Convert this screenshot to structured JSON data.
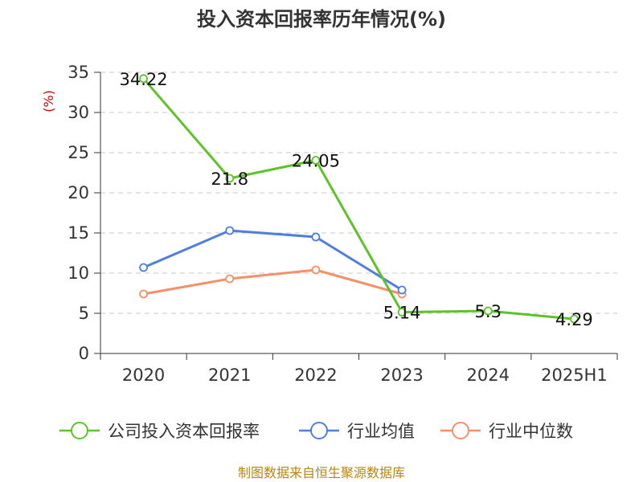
{
  "chart_data": {
    "type": "line",
    "title": "投入资本回报率历年情况(%)",
    "unit_label": "(%)",
    "categories": [
      "2020",
      "2021",
      "2022",
      "2023",
      "2024",
      "2025H1"
    ],
    "ylim": [
      0,
      35
    ],
    "yticks": [
      0,
      5,
      10,
      15,
      20,
      25,
      30,
      35
    ],
    "grid": true,
    "legend_position": "bottom",
    "series": [
      {
        "name": "公司投入资本回报率",
        "color": "#5ec229",
        "values": [
          34.22,
          21.8,
          24.05,
          5.14,
          5.3,
          4.29
        ],
        "labels": [
          "34.22",
          "21.8",
          "24.05",
          "5.14",
          "5.3",
          "4.29"
        ]
      },
      {
        "name": "行业均值",
        "color": "#4f7fdb",
        "values": [
          10.7,
          15.3,
          14.5,
          7.9,
          null,
          null
        ]
      },
      {
        "name": "行业中位数",
        "color": "#f4906a",
        "values": [
          7.4,
          9.3,
          10.4,
          7.4,
          null,
          null
        ]
      }
    ]
  },
  "source_text": "制图数据来自恒生聚源数据库"
}
